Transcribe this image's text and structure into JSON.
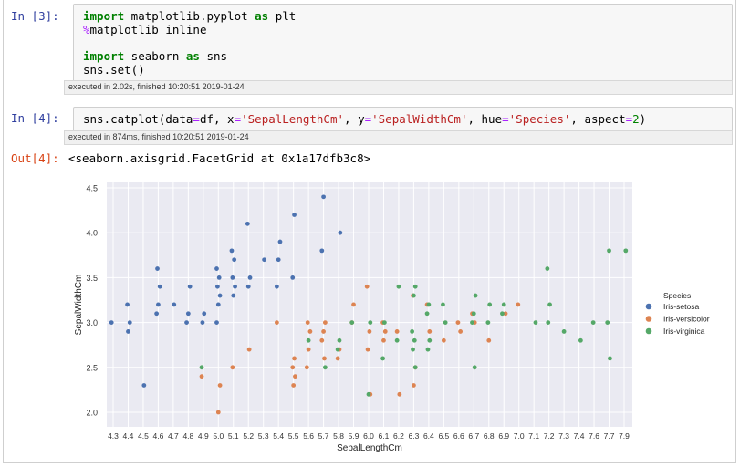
{
  "cells": {
    "in3": {
      "prompt": "In [3]:",
      "lines": [
        {
          "kw1": "import",
          "rest1": " matplotlib.pyplot ",
          "kw2": "as",
          "rest2": " plt"
        },
        {
          "magic": "%",
          "rest": "matplotlib inline"
        },
        {
          "blank": ""
        },
        {
          "kw1": "import",
          "rest1": " seaborn ",
          "kw2": "as",
          "rest2": " sns"
        },
        {
          "plain": "sns.set()"
        }
      ],
      "exec_info": "executed in 2.02s, finished 10:20:51 2019-01-24"
    },
    "in4": {
      "prompt": "In [4]:",
      "code": {
        "p1": "sns.catplot(data",
        "eq1": "=",
        "p2": "df, x",
        "eq2": "=",
        "s1": "'SepalLengthCm'",
        "p3": ", y",
        "eq3": "=",
        "s2": "'SepalWidthCm'",
        "p4": ", hue",
        "eq4": "=",
        "s3": "'Species'",
        "p5": ", aspect",
        "eq5": "=",
        "num": "2",
        "p6": ")"
      },
      "exec_info": "executed in 874ms, finished 10:20:51 2019-01-24",
      "out_prompt": "Out[4]:",
      "output": "<seaborn.axisgrid.FacetGrid at 0x1a17dfb3c8>"
    }
  },
  "chart_data": {
    "type": "scatter",
    "xlabel": "SepalLengthCm",
    "ylabel": "SepalWidthCm",
    "categories": [
      "4.3",
      "4.4",
      "4.5",
      "4.6",
      "4.7",
      "4.8",
      "4.9",
      "5.0",
      "5.1",
      "5.2",
      "5.3",
      "5.4",
      "5.5",
      "5.6",
      "5.7",
      "5.8",
      "5.9",
      "6.0",
      "6.1",
      "6.2",
      "6.3",
      "6.4",
      "6.5",
      "6.6",
      "6.7",
      "6.8",
      "6.9",
      "7.0",
      "7.1",
      "7.2",
      "7.3",
      "7.4",
      "7.6",
      "7.7",
      "7.9"
    ],
    "yticks": [
      "2.0",
      "2.5",
      "3.0",
      "3.5",
      "4.0",
      "4.5"
    ],
    "ylim": [
      1.9,
      4.6
    ],
    "grid": true,
    "background": "#eaeaf2",
    "legend": {
      "title": "Species",
      "position": "right",
      "entries": [
        {
          "name": "Iris-setosa",
          "color": "#4c72b0"
        },
        {
          "name": "Iris-versicolor",
          "color": "#dd8452"
        },
        {
          "name": "Iris-virginica",
          "color": "#55a868"
        }
      ]
    },
    "series": [
      {
        "name": "Iris-setosa",
        "color": "#4c72b0",
        "points": [
          [
            "4.3",
            3.0
          ],
          [
            "4.4",
            2.9
          ],
          [
            "4.4",
            3.0
          ],
          [
            "4.4",
            3.2
          ],
          [
            "4.5",
            2.3
          ],
          [
            "4.6",
            3.1
          ],
          [
            "4.6",
            3.2
          ],
          [
            "4.6",
            3.4
          ],
          [
            "4.6",
            3.6
          ],
          [
            "4.7",
            3.2
          ],
          [
            "4.8",
            3.0
          ],
          [
            "4.8",
            3.1
          ],
          [
            "4.8",
            3.4
          ],
          [
            "4.9",
            3.0
          ],
          [
            "4.9",
            3.1
          ],
          [
            "5.0",
            3.0
          ],
          [
            "5.0",
            3.2
          ],
          [
            "5.0",
            3.3
          ],
          [
            "5.0",
            3.4
          ],
          [
            "5.0",
            3.5
          ],
          [
            "5.0",
            3.6
          ],
          [
            "5.1",
            3.3
          ],
          [
            "5.1",
            3.4
          ],
          [
            "5.1",
            3.5
          ],
          [
            "5.1",
            3.7
          ],
          [
            "5.1",
            3.8
          ],
          [
            "5.2",
            3.4
          ],
          [
            "5.2",
            3.5
          ],
          [
            "5.2",
            4.1
          ],
          [
            "5.3",
            3.7
          ],
          [
            "5.4",
            3.4
          ],
          [
            "5.4",
            3.7
          ],
          [
            "5.4",
            3.9
          ],
          [
            "5.5",
            3.5
          ],
          [
            "5.5",
            4.2
          ],
          [
            "5.7",
            3.8
          ],
          [
            "5.7",
            4.4
          ],
          [
            "5.8",
            4.0
          ]
        ]
      },
      {
        "name": "Iris-versicolor",
        "color": "#dd8452",
        "points": [
          [
            "4.9",
            2.4
          ],
          [
            "5.0",
            2.0
          ],
          [
            "5.0",
            2.3
          ],
          [
            "5.1",
            2.5
          ],
          [
            "5.2",
            2.7
          ],
          [
            "5.4",
            3.0
          ],
          [
            "5.5",
            2.3
          ],
          [
            "5.5",
            2.4
          ],
          [
            "5.5",
            2.5
          ],
          [
            "5.5",
            2.6
          ],
          [
            "5.6",
            2.5
          ],
          [
            "5.6",
            2.7
          ],
          [
            "5.6",
            2.9
          ],
          [
            "5.6",
            3.0
          ],
          [
            "5.7",
            2.6
          ],
          [
            "5.7",
            2.8
          ],
          [
            "5.7",
            2.9
          ],
          [
            "5.7",
            3.0
          ],
          [
            "5.8",
            2.6
          ],
          [
            "5.8",
            2.7
          ],
          [
            "5.9",
            3.0
          ],
          [
            "5.9",
            3.2
          ],
          [
            "6.0",
            2.2
          ],
          [
            "6.0",
            2.7
          ],
          [
            "6.0",
            2.9
          ],
          [
            "6.0",
            3.4
          ],
          [
            "6.1",
            2.8
          ],
          [
            "6.1",
            2.9
          ],
          [
            "6.1",
            3.0
          ],
          [
            "6.2",
            2.2
          ],
          [
            "6.2",
            2.9
          ],
          [
            "6.3",
            2.3
          ],
          [
            "6.3",
            2.5
          ],
          [
            "6.3",
            3.3
          ],
          [
            "6.4",
            2.9
          ],
          [
            "6.4",
            3.2
          ],
          [
            "6.5",
            2.8
          ],
          [
            "6.6",
            2.9
          ],
          [
            "6.6",
            3.0
          ],
          [
            "6.7",
            3.0
          ],
          [
            "6.7",
            3.1
          ],
          [
            "6.8",
            2.8
          ],
          [
            "6.9",
            3.1
          ],
          [
            "7.0",
            3.2
          ]
        ]
      },
      {
        "name": "Iris-virginica",
        "color": "#55a868",
        "points": [
          [
            "4.9",
            2.5
          ],
          [
            "5.6",
            2.8
          ],
          [
            "5.7",
            2.5
          ],
          [
            "5.8",
            2.7
          ],
          [
            "5.8",
            2.8
          ],
          [
            "5.9",
            3.0
          ],
          [
            "6.0",
            2.2
          ],
          [
            "6.0",
            3.0
          ],
          [
            "6.1",
            2.6
          ],
          [
            "6.1",
            3.0
          ],
          [
            "6.2",
            2.8
          ],
          [
            "6.2",
            3.4
          ],
          [
            "6.3",
            2.5
          ],
          [
            "6.3",
            2.7
          ],
          [
            "6.3",
            2.8
          ],
          [
            "6.3",
            2.9
          ],
          [
            "6.3",
            3.3
          ],
          [
            "6.3",
            3.4
          ],
          [
            "6.4",
            2.7
          ],
          [
            "6.4",
            2.8
          ],
          [
            "6.4",
            3.1
          ],
          [
            "6.4",
            3.2
          ],
          [
            "6.5",
            3.0
          ],
          [
            "6.5",
            3.2
          ],
          [
            "6.7",
            2.5
          ],
          [
            "6.7",
            3.0
          ],
          [
            "6.7",
            3.1
          ],
          [
            "6.7",
            3.3
          ],
          [
            "6.8",
            3.0
          ],
          [
            "6.8",
            3.2
          ],
          [
            "6.9",
            3.1
          ],
          [
            "6.9",
            3.2
          ],
          [
            "7.1",
            3.0
          ],
          [
            "7.2",
            3.0
          ],
          [
            "7.2",
            3.2
          ],
          [
            "7.2",
            3.6
          ],
          [
            "7.3",
            2.9
          ],
          [
            "7.4",
            2.8
          ],
          [
            "7.6",
            3.0
          ],
          [
            "7.7",
            2.6
          ],
          [
            "7.7",
            3.0
          ],
          [
            "7.7",
            3.8
          ],
          [
            "7.9",
            3.8
          ]
        ]
      }
    ]
  }
}
